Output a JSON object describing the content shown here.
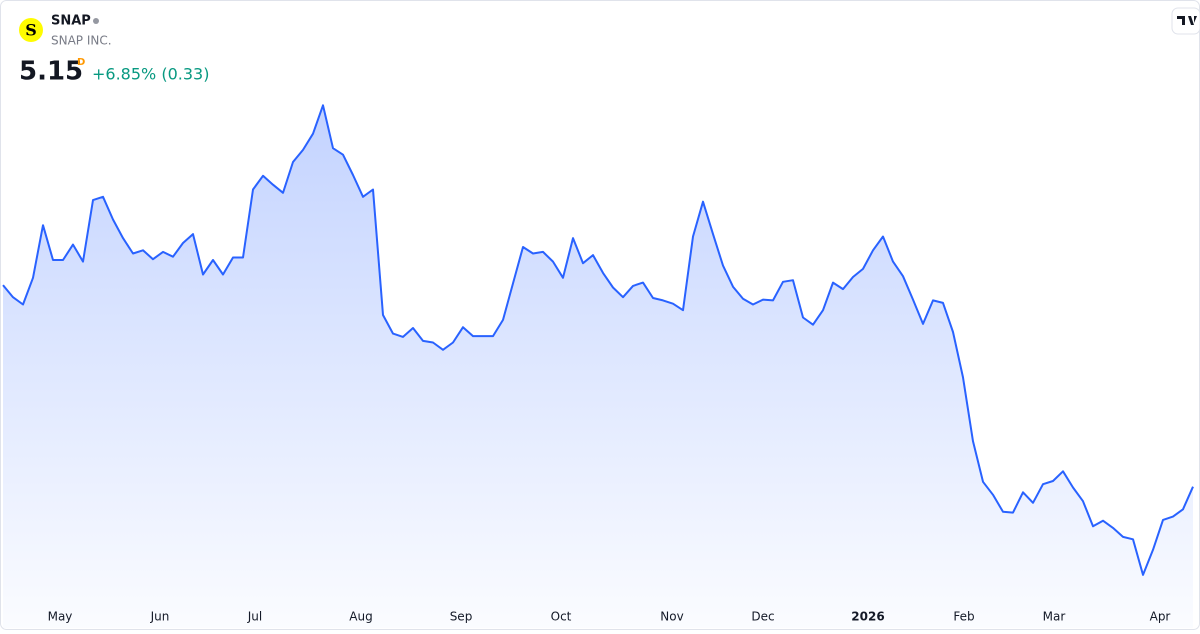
{
  "header": {
    "logo": "S",
    "symbol": "SNAP",
    "company": "SNAP INC.",
    "price": 5.15,
    "interval": "D",
    "change": "+6.85% (0.33)"
  },
  "chart_data": {
    "type": "area",
    "values": [
      7.64,
      7.49,
      7.4,
      7.73,
      8.38,
      7.95,
      7.95,
      8.14,
      7.93,
      8.69,
      8.73,
      8.45,
      8.22,
      8.03,
      8.07,
      7.96,
      8.05,
      7.99,
      8.16,
      8.27,
      7.77,
      7.95,
      7.77,
      7.98,
      7.98,
      8.82,
      8.99,
      8.88,
      8.78,
      9.16,
      9.31,
      9.51,
      9.86,
      9.33,
      9.25,
      9.0,
      8.73,
      8.82,
      7.27,
      7.04,
      7.0,
      7.11,
      6.95,
      6.93,
      6.84,
      6.93,
      7.12,
      7.01,
      7.01,
      7.01,
      7.21,
      7.66,
      8.11,
      8.03,
      8.05,
      7.93,
      7.73,
      8.22,
      7.91,
      8.01,
      7.79,
      7.61,
      7.49,
      7.63,
      7.67,
      7.48,
      7.45,
      7.41,
      7.33,
      8.24,
      8.67,
      8.27,
      7.88,
      7.62,
      7.47,
      7.4,
      7.46,
      7.45,
      7.68,
      7.7,
      7.24,
      7.15,
      7.33,
      7.67,
      7.59,
      7.74,
      7.84,
      8.07,
      8.24,
      7.93,
      7.75,
      7.46,
      7.16,
      7.45,
      7.42,
      7.06,
      6.5,
      5.71,
      5.21,
      5.05,
      4.84,
      4.83,
      5.08,
      4.95,
      5.18,
      5.22,
      5.34,
      5.14,
      4.97,
      4.66,
      4.73,
      4.64,
      4.53,
      4.5,
      4.06,
      4.37,
      4.74,
      4.78,
      4.87,
      5.15
    ],
    "color": "#2962ff",
    "xlim": [
      0,
      119
    ],
    "ylim": [
      3.75,
      10.42
    ],
    "xticks": [
      {
        "value": 5.7,
        "label": "May"
      },
      {
        "value": 15.7,
        "label": "Jun"
      },
      {
        "value": 25.2,
        "label": "Jul"
      },
      {
        "value": 35.8,
        "label": "Aug"
      },
      {
        "value": 45.8,
        "label": "Sep"
      },
      {
        "value": 55.8,
        "label": "Oct"
      },
      {
        "value": 66.9,
        "label": "Nov"
      },
      {
        "value": 76,
        "label": "Dec"
      },
      {
        "value": 86.5,
        "label": "2026",
        "bold": true
      },
      {
        "value": 96.1,
        "label": "Feb"
      },
      {
        "value": 105.1,
        "label": "Mar"
      },
      {
        "value": 115.7,
        "label": "Apr"
      }
    ]
  }
}
